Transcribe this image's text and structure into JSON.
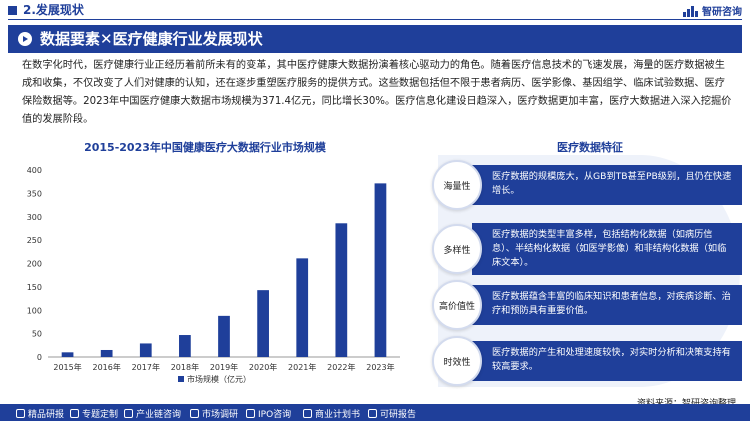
{
  "header": {
    "section": "2.发展现状",
    "logo_text": "智研咨询"
  },
  "title": "数据要素✕医疗健康行业发展现状",
  "intro": "在数字化时代，医疗健康行业正经历着前所未有的变革，其中医疗健康大数据扮演着核心驱动力的角色。随着医疗信息技术的飞速发展，海量的医疗数据被生成和收集，不仅改变了人们对健康的认知，还在逐步重塑医疗服务的提供方式。这些数据包括但不限于患者病历、医学影像、基因组学、临床试验数据、医疗保险数据等。2023年中国医疗健康大数据市场规模为371.4亿元，同比增长30%。医疗信息化建设日趋深入，医疗数据更加丰富，医疗大数据进入深入挖掘价值的发展阶段。",
  "chart_data": {
    "type": "bar",
    "title": "2015-2023年中国健康医疗大数据行业市场规模",
    "categories": [
      "2015年",
      "2016年",
      "2017年",
      "2018年",
      "2019年",
      "2020年",
      "2021年",
      "2022年",
      "2023年"
    ],
    "series": [
      {
        "name": "市场规模（亿元）",
        "values": [
          10,
          15,
          29,
          47,
          88,
          143,
          211,
          286,
          371.4
        ]
      }
    ],
    "ylim": [
      0,
      400
    ],
    "yticks": [
      0,
      50,
      100,
      150,
      200,
      250,
      300,
      350,
      400
    ],
    "grid": false,
    "legend_position": "bottom",
    "bar_color": "#1f3f9a"
  },
  "features": {
    "title": "医疗数据特征",
    "items": [
      {
        "label": "海量性",
        "text": "医疗数据的规模庞大，从GB到TB甚至PB级别，且仍在快速增长。"
      },
      {
        "label": "多样性",
        "text": "医疗数据的类型丰富多样，包括结构化数据（如病历信息）、半结构化数据（如医学影像）和非结构化数据（如临床文本）。"
      },
      {
        "label": "高价值性",
        "text": "医疗数据蕴含丰富的临床知识和患者信息，对疾病诊断、治疗和预防具有重要价值。"
      },
      {
        "label": "时效性",
        "text": "医疗数据的产生和处理速度较快，对实时分析和决策支持有较高要求。"
      }
    ]
  },
  "source": "资料来源：智研咨询整理",
  "footer": {
    "items": [
      "精品研报",
      "专题定制",
      "产业链咨询",
      "市场调研",
      "IPO咨询",
      "商业计划书",
      "可研报告"
    ]
  },
  "colors": {
    "primary": "#1f3f9a",
    "panel": "#eef2fa"
  }
}
